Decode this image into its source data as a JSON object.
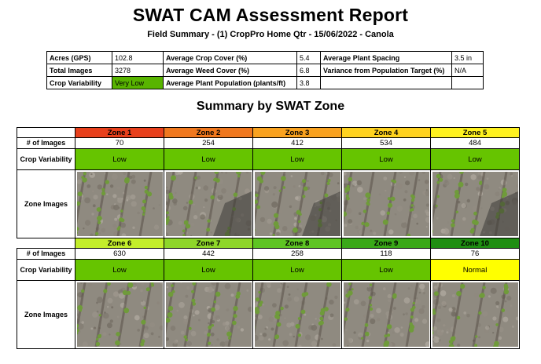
{
  "report": {
    "title": "SWAT CAM Assessment Report",
    "subtitle": "Field Summary - (1) CropPro Home Qtr - 15/06/2022 - Canola"
  },
  "summary": {
    "acres_label": "Acres (GPS)",
    "acres_value": "102.8",
    "crop_cover_label": "Average Crop Cover (%)",
    "crop_cover_value": "5.4",
    "plant_spacing_label": "Average Plant Spacing",
    "plant_spacing_value": "3.5 in",
    "total_images_label": "Total Images",
    "total_images_value": "3278",
    "weed_cover_label": "Average Weed Cover (%)",
    "weed_cover_value": "6.8",
    "variance_label": "Variance from Population Target (%)",
    "variance_value": "N/A",
    "crop_variability_label": "Crop Variability",
    "crop_variability_value": "Very Low",
    "plant_population_label": "Average Plant Population (plants/ft)",
    "plant_population_value": "3.8"
  },
  "section_title": "Summary by SWAT Zone",
  "row_labels": {
    "images": "# of Images",
    "variability": "Crop Variability",
    "zone_images": "Zone Images"
  },
  "zones_row1": [
    {
      "name": "Zone 1",
      "images": "70",
      "variability": "Low",
      "color": "#e8401c",
      "var_color": "#66c400"
    },
    {
      "name": "Zone 2",
      "images": "254",
      "variability": "Low",
      "color": "#f0781e",
      "var_color": "#66c400"
    },
    {
      "name": "Zone 3",
      "images": "412",
      "variability": "Low",
      "color": "#f9a21f",
      "var_color": "#66c400"
    },
    {
      "name": "Zone 4",
      "images": "534",
      "variability": "Low",
      "color": "#ffd21f",
      "var_color": "#66c400"
    },
    {
      "name": "Zone 5",
      "images": "484",
      "variability": "Low",
      "color": "#fff21f",
      "var_color": "#66c400"
    }
  ],
  "zones_row2": [
    {
      "name": "Zone 6",
      "images": "630",
      "variability": "Low",
      "color": "#c3ee2b",
      "var_color": "#66c400"
    },
    {
      "name": "Zone 7",
      "images": "442",
      "variability": "Low",
      "color": "#8ed62a",
      "var_color": "#66c400"
    },
    {
      "name": "Zone 8",
      "images": "258",
      "variability": "Low",
      "color": "#5ec423",
      "var_color": "#66c400"
    },
    {
      "name": "Zone 9",
      "images": "118",
      "variability": "Low",
      "color": "#3aa818",
      "var_color": "#66c400"
    },
    {
      "name": "Zone 10",
      "images": "76",
      "variability": "Normal",
      "color": "#1f8e12",
      "var_color": "#ffff00"
    }
  ]
}
